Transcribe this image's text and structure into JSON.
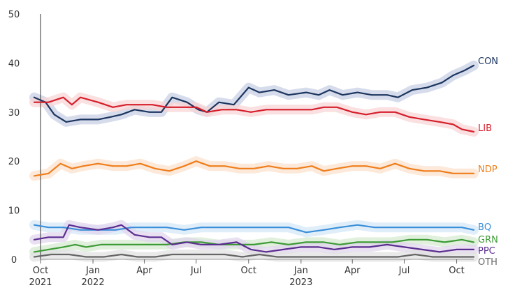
{
  "chart_data": {
    "type": "line",
    "title": "",
    "xlabel": "",
    "ylabel": "",
    "ylim": [
      0,
      50
    ],
    "xlim": [
      "2021-10-01",
      "2023-10-31"
    ],
    "yticks": [
      0,
      10,
      20,
      30,
      40,
      50
    ],
    "grid": false,
    "legend": "right-edge",
    "xticks": [
      {
        "date": "2021-10-01",
        "line1": "Oct",
        "line2": "2021"
      },
      {
        "date": "2022-01-01",
        "line1": "Jan",
        "line2": "2022"
      },
      {
        "date": "2022-04-01",
        "line1": "Apr",
        "line2": ""
      },
      {
        "date": "2022-07-01",
        "line1": "Jul",
        "line2": ""
      },
      {
        "date": "2022-10-01",
        "line1": "Oct",
        "line2": ""
      },
      {
        "date": "2023-01-01",
        "line1": "Jan",
        "line2": "2023"
      },
      {
        "date": "2023-04-01",
        "line1": "Apr",
        "line2": ""
      },
      {
        "date": "2023-07-01",
        "line1": "Jul",
        "line2": ""
      },
      {
        "date": "2023-10-01",
        "line1": "Oct",
        "line2": ""
      }
    ],
    "series": [
      {
        "name": "CON",
        "color": "#1b355f",
        "band": "#c8d0e4",
        "x": [
          "2021-09-20",
          "2021-10-10",
          "2021-10-25",
          "2021-11-15",
          "2021-12-10",
          "2022-01-10",
          "2022-02-01",
          "2022-02-20",
          "2022-03-15",
          "2022-04-10",
          "2022-05-01",
          "2022-05-20",
          "2022-06-15",
          "2022-07-05",
          "2022-07-20",
          "2022-08-10",
          "2022-09-05",
          "2022-10-01",
          "2022-10-20",
          "2022-11-15",
          "2022-12-10",
          "2023-01-10",
          "2023-02-01",
          "2023-02-20",
          "2023-03-15",
          "2023-04-10",
          "2023-05-05",
          "2023-06-01",
          "2023-06-20",
          "2023-07-15",
          "2023-08-10",
          "2023-09-05",
          "2023-09-25",
          "2023-10-15",
          "2023-10-31"
        ],
        "y": [
          33,
          32,
          29.5,
          28,
          28.5,
          28.5,
          29,
          29.5,
          30.5,
          30,
          30,
          33,
          32,
          30.5,
          30,
          32,
          31.5,
          35,
          34,
          34.5,
          33.5,
          34,
          33.5,
          34.5,
          33.5,
          34,
          33.5,
          33.5,
          33,
          34.5,
          35,
          36,
          37.5,
          38.5,
          39.5
        ]
      },
      {
        "name": "LIB",
        "color": "#d61e2b",
        "band": "#f8d6d6",
        "x": [
          "2021-09-20",
          "2021-10-15",
          "2021-11-10",
          "2021-11-25",
          "2021-12-10",
          "2022-01-10",
          "2022-02-05",
          "2022-03-01",
          "2022-03-25",
          "2022-04-15",
          "2022-05-10",
          "2022-06-05",
          "2022-07-01",
          "2022-07-20",
          "2022-08-15",
          "2022-09-10",
          "2022-10-05",
          "2022-11-01",
          "2022-11-25",
          "2022-12-20",
          "2023-01-20",
          "2023-02-10",
          "2023-03-05",
          "2023-04-01",
          "2023-04-25",
          "2023-05-20",
          "2023-06-15",
          "2023-07-10",
          "2023-08-05",
          "2023-09-01",
          "2023-09-25",
          "2023-10-10",
          "2023-10-31"
        ],
        "y": [
          32,
          32,
          33,
          31.5,
          33,
          32,
          31,
          31.5,
          31.5,
          31.5,
          31,
          31,
          31,
          30,
          30.5,
          30.5,
          30,
          30.5,
          30.5,
          30.5,
          30.5,
          31,
          31,
          30,
          29.5,
          30,
          30,
          29,
          28.5,
          28,
          27.5,
          26.5,
          26
        ]
      },
      {
        "name": "NDP",
        "color": "#ef7d1a",
        "band": "#fbe2cc",
        "x": [
          "2021-09-20",
          "2021-10-15",
          "2021-11-05",
          "2021-11-25",
          "2021-12-15",
          "2022-01-10",
          "2022-02-05",
          "2022-03-01",
          "2022-03-25",
          "2022-04-20",
          "2022-05-15",
          "2022-06-10",
          "2022-07-01",
          "2022-07-25",
          "2022-08-20",
          "2022-09-15",
          "2022-10-10",
          "2022-11-05",
          "2022-12-01",
          "2022-12-25",
          "2023-01-20",
          "2023-02-10",
          "2023-03-05",
          "2023-04-01",
          "2023-04-25",
          "2023-05-20",
          "2023-06-15",
          "2023-07-10",
          "2023-08-05",
          "2023-09-01",
          "2023-09-25",
          "2023-10-15",
          "2023-10-31"
        ],
        "y": [
          17,
          17.5,
          19.5,
          18.5,
          19,
          19.5,
          19,
          19,
          19.5,
          18.5,
          18,
          19,
          20,
          19,
          19,
          18.5,
          18.5,
          19,
          18.5,
          18.5,
          19,
          18,
          18.5,
          19,
          19,
          18.5,
          19.5,
          18.5,
          18,
          18,
          17.5,
          17.5,
          17.5
        ]
      },
      {
        "name": "BQ",
        "color": "#3a8fd9",
        "band": "#d5e8f8",
        "x": [
          "2021-09-20",
          "2021-10-15",
          "2021-11-10",
          "2021-12-10",
          "2022-01-10",
          "2022-02-10",
          "2022-03-10",
          "2022-04-10",
          "2022-05-10",
          "2022-06-10",
          "2022-07-10",
          "2022-08-10",
          "2022-09-10",
          "2022-10-10",
          "2022-11-10",
          "2022-12-10",
          "2023-01-10",
          "2023-02-10",
          "2023-03-10",
          "2023-04-10",
          "2023-05-10",
          "2023-06-10",
          "2023-07-10",
          "2023-08-10",
          "2023-09-10",
          "2023-10-10",
          "2023-10-31"
        ],
        "y": [
          7,
          6.5,
          6.5,
          6,
          6,
          6,
          6.5,
          6.5,
          6.5,
          6,
          6.5,
          6.5,
          6.5,
          6.5,
          6.5,
          6.5,
          5.5,
          6,
          6.5,
          7,
          6.5,
          6.5,
          6.5,
          6.5,
          6.5,
          6.5,
          6
        ]
      },
      {
        "name": "GRN",
        "color": "#3d9b35",
        "band": "#d5ebd2",
        "x": [
          "2021-09-20",
          "2021-10-15",
          "2021-11-10",
          "2021-12-01",
          "2021-12-20",
          "2022-01-15",
          "2022-02-10",
          "2022-03-10",
          "2022-04-10",
          "2022-05-10",
          "2022-06-10",
          "2022-07-10",
          "2022-08-10",
          "2022-09-10",
          "2022-10-10",
          "2022-11-10",
          "2022-12-10",
          "2023-01-10",
          "2023-02-10",
          "2023-03-10",
          "2023-04-10",
          "2023-05-10",
          "2023-06-10",
          "2023-07-10",
          "2023-08-10",
          "2023-09-10",
          "2023-10-10",
          "2023-10-31"
        ],
        "y": [
          1.5,
          2,
          2.5,
          3,
          2.5,
          3,
          3,
          3,
          3,
          3,
          3.5,
          3.5,
          3,
          3,
          3,
          3.5,
          3,
          3.5,
          3.5,
          3,
          3.5,
          3.5,
          3.5,
          4,
          4,
          3.5,
          4,
          3.5
        ]
      },
      {
        "name": "PPC",
        "color": "#5b2d90",
        "band": "#e2d6ee",
        "x": [
          "2021-09-20",
          "2021-10-15",
          "2021-11-10",
          "2021-11-20",
          "2021-12-10",
          "2022-01-10",
          "2022-02-05",
          "2022-02-20",
          "2022-03-15",
          "2022-04-10",
          "2022-05-01",
          "2022-05-20",
          "2022-06-15",
          "2022-07-10",
          "2022-08-10",
          "2022-09-10",
          "2022-10-05",
          "2022-11-01",
          "2022-12-01",
          "2023-01-01",
          "2023-02-01",
          "2023-03-01",
          "2023-04-01",
          "2023-05-01",
          "2023-06-01",
          "2023-07-01",
          "2023-08-01",
          "2023-09-01",
          "2023-10-01",
          "2023-10-31"
        ],
        "y": [
          4,
          4.5,
          4.5,
          7,
          6.5,
          6,
          6.5,
          7,
          5,
          4.5,
          4.5,
          3,
          3.5,
          3,
          3,
          3.5,
          2,
          1.5,
          2,
          2.5,
          2.5,
          2,
          2.5,
          2.5,
          3,
          2.5,
          2,
          1.5,
          2,
          2
        ]
      },
      {
        "name": "OTH",
        "color": "#666666",
        "band": "#e2e2e2",
        "x": [
          "2021-09-20",
          "2021-10-20",
          "2021-11-20",
          "2021-12-20",
          "2022-01-20",
          "2022-02-20",
          "2022-03-20",
          "2022-04-20",
          "2022-05-20",
          "2022-06-20",
          "2022-07-20",
          "2022-08-20",
          "2022-09-20",
          "2022-10-20",
          "2022-11-20",
          "2022-12-20",
          "2023-01-20",
          "2023-02-20",
          "2023-03-20",
          "2023-04-20",
          "2023-05-20",
          "2023-06-20",
          "2023-07-20",
          "2023-08-20",
          "2023-09-20",
          "2023-10-31"
        ],
        "y": [
          0.5,
          1,
          1,
          0.5,
          0.5,
          1,
          0.5,
          0.5,
          1,
          1,
          1,
          1,
          0.5,
          1,
          0.5,
          0.5,
          0.5,
          0.5,
          0.5,
          0.5,
          0.5,
          0.5,
          1,
          0.5,
          0.5,
          0.5
        ]
      }
    ]
  }
}
